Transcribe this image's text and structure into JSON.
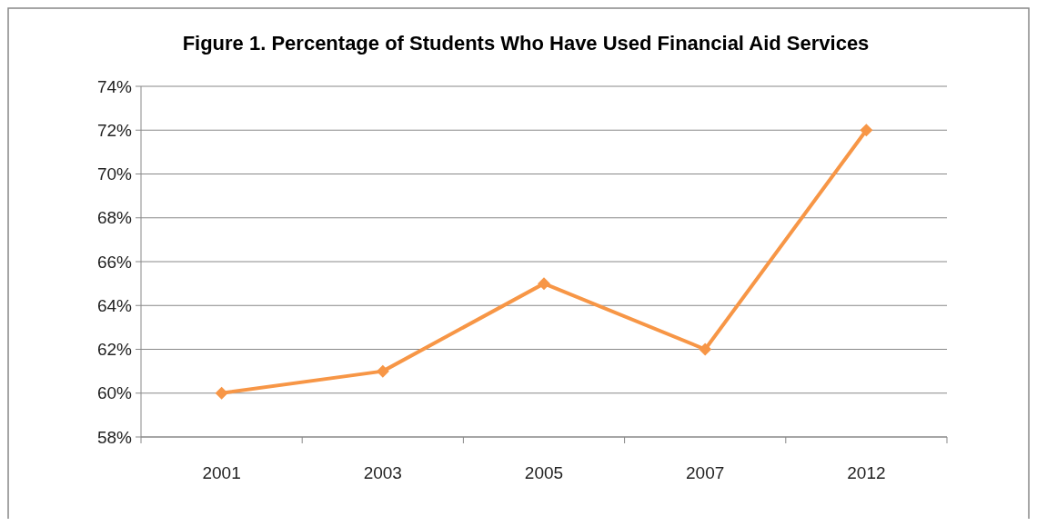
{
  "chart_data": {
    "type": "line",
    "title": "Figure 1. Percentage of Students Who Have Used Financial  Aid Services",
    "categories": [
      "2001",
      "2003",
      "2005",
      "2007",
      "2012"
    ],
    "series": [
      {
        "color": "#f79646",
        "values": [
          60,
          61,
          65,
          62,
          72
        ]
      }
    ],
    "ylim": [
      58,
      74
    ],
    "yticks": [
      {
        "value": 58,
        "label": "58%"
      },
      {
        "value": 60,
        "label": "60%"
      },
      {
        "value": 62,
        "label": "62%"
      },
      {
        "value": 64,
        "label": "64%"
      },
      {
        "value": 66,
        "label": "66%"
      },
      {
        "value": 68,
        "label": "68%"
      },
      {
        "value": 70,
        "label": "70%"
      },
      {
        "value": 72,
        "label": "72%"
      },
      {
        "value": 74,
        "label": "74%"
      }
    ],
    "grid": "y",
    "marker": "diamond",
    "line_style": "solid"
  }
}
